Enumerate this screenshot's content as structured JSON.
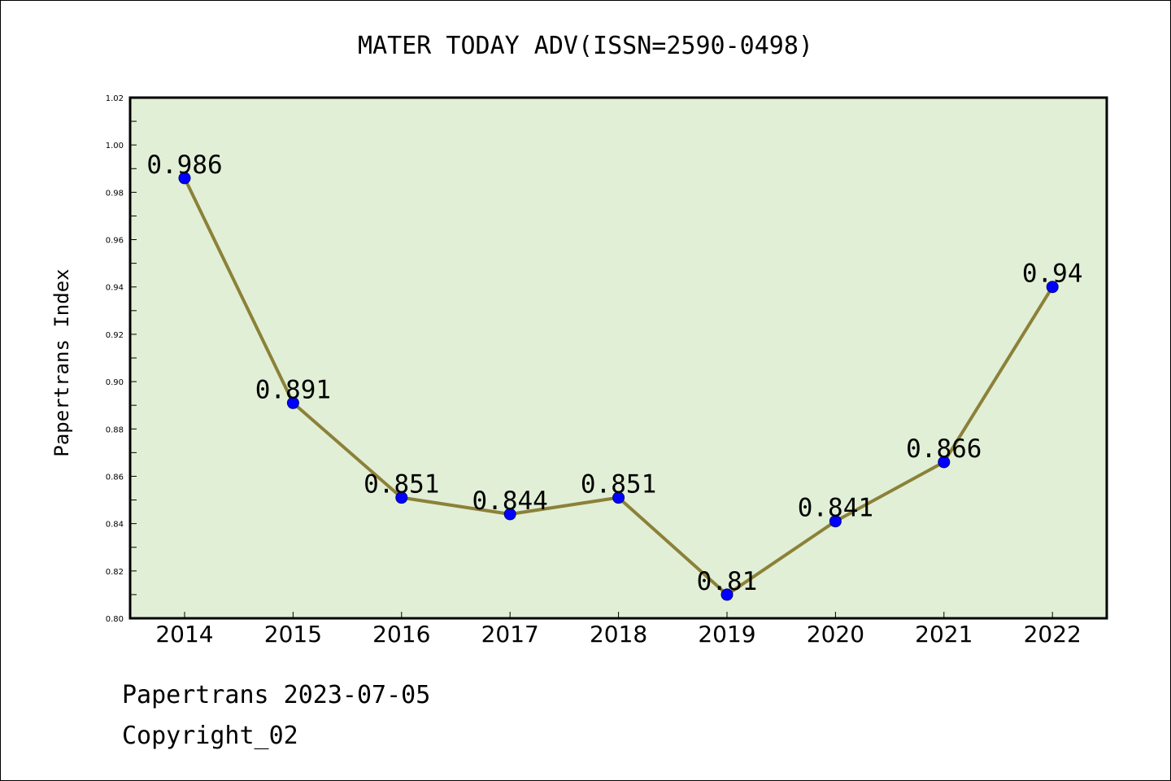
{
  "chart_data": {
    "type": "line",
    "title": "MATER TODAY ADV(ISSN=2590-0498)",
    "xlabel": "",
    "ylabel": "Papertrans Index",
    "categories": [
      "2014",
      "2015",
      "2016",
      "2017",
      "2018",
      "2019",
      "2020",
      "2021",
      "2022"
    ],
    "values": [
      0.986,
      0.891,
      0.851,
      0.844,
      0.851,
      0.81,
      0.841,
      0.866,
      0.94
    ],
    "data_labels": [
      "0.986",
      "0.891",
      "0.851",
      "0.844",
      "0.851",
      "0.81",
      "0.841",
      "0.866",
      "0.94"
    ],
    "ylim": [
      0.8,
      1.02
    ],
    "yticks": [
      "0.80",
      "0.82",
      "0.84",
      "0.86",
      "0.88",
      "0.90",
      "0.92",
      "0.94",
      "0.96",
      "0.98",
      "1.00",
      "1.02"
    ],
    "grid": false,
    "colors": {
      "plot_background": "#e1efd6",
      "line": "#8b8138",
      "marker": "#0000ff",
      "axis": "#000000"
    }
  },
  "footer": {
    "line1": "Papertrans 2023-07-05",
    "line2": "Copyright_02"
  }
}
